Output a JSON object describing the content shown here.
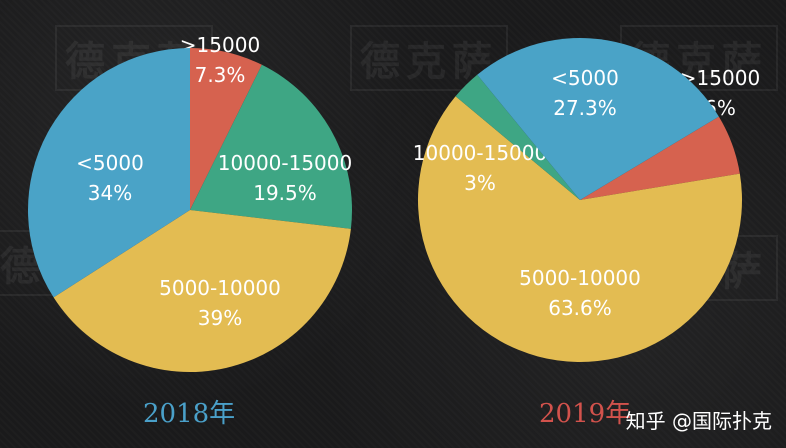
{
  "chart_data": [
    {
      "type": "pie",
      "title": "2018年",
      "title_color": "#4aa0c9",
      "slices": [
        {
          "label": ">15000",
          "value": 7.3,
          "value_label": "7.3%",
          "color": "#d6624f"
        },
        {
          "label": "10000-15000",
          "value": 19.5,
          "value_label": "19.5%",
          "color": "#3ea684"
        },
        {
          "label": "5000-10000",
          "value": 39,
          "value_label": "39%",
          "color": "#e3bc52"
        },
        {
          "label": "<5000",
          "value": 34,
          "value_label": "34%",
          "color": "#4aa3c7"
        }
      ]
    },
    {
      "type": "pie",
      "title": "2019年",
      "title_color": "#d2524c",
      "slices": [
        {
          "label": ">15000",
          "value": 6,
          "value_label": "6%",
          "color": "#d6624f"
        },
        {
          "label": "5000-10000",
          "value": 63.6,
          "value_label": "63.6%",
          "color": "#e3bc52"
        },
        {
          "label": "10000-15000",
          "value": 3,
          "value_label": "3%",
          "color": "#3ea684"
        },
        {
          "label": "<5000",
          "value": 27.3,
          "value_label": "27.3%",
          "color": "#4aa3c7"
        }
      ]
    }
  ],
  "watermark_text": "德克萨",
  "credit": "知乎 @国际扑克"
}
